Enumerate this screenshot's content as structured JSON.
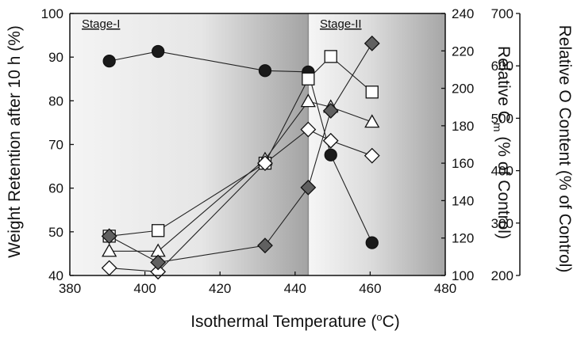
{
  "chart_data": {
    "type": "scatter",
    "x_axis": {
      "label_prefix": "Isothermal Temperature (",
      "label_sup": "o",
      "label_suffix": "C)",
      "range": [
        380,
        480
      ],
      "ticks": [
        "380",
        "400",
        "420",
        "440",
        "460",
        "480"
      ]
    },
    "y_left": {
      "label": "Weight Retention after 10 h (%)",
      "range": [
        40,
        100
      ],
      "ticks": [
        "40",
        "50",
        "60",
        "70",
        "80",
        "90",
        "100"
      ]
    },
    "y_middle": {
      "label_prefix": "Relative C",
      "label_sub": "m",
      "label_suffix": " (% of Control)",
      "range": [
        100,
        240
      ],
      "ticks": [
        "100",
        "120",
        "140",
        "160",
        "180",
        "200",
        "220",
        "240"
      ]
    },
    "y_right": {
      "label": "Relative O Content (% of Control)",
      "range": [
        200,
        700
      ],
      "ticks": [
        "200",
        "300",
        "400",
        "500",
        "600",
        "700"
      ]
    },
    "stages": [
      {
        "label": "Stage-I",
        "x_range": [
          380,
          443.5
        ]
      },
      {
        "label": "Stage-II",
        "x_range": [
          443.5,
          480
        ]
      }
    ],
    "series": [
      {
        "marker": "circle-filled",
        "axis": "left",
        "color": "#1a1a1a",
        "x": [
          390.5,
          403.5,
          432,
          443.5,
          449.5,
          460.5
        ],
        "y": [
          89.1,
          91.3,
          86.9,
          86.6,
          67.6,
          47.5
        ]
      },
      {
        "marker": "square-open",
        "axis": "middle",
        "color": "#ffffff",
        "x": [
          390.5,
          403.5,
          432,
          443.5,
          449.5,
          460.5
        ],
        "y": [
          121,
          124,
          160,
          205,
          217,
          198
        ]
      },
      {
        "marker": "triangle-open",
        "axis": "middle",
        "color": "#ffffff",
        "x": [
          390.5,
          403.5,
          432,
          443.5,
          449.5,
          460.5
        ],
        "y": [
          113,
          113,
          162,
          193,
          190,
          182
        ]
      },
      {
        "marker": "diamond-open",
        "axis": "middle",
        "color": "#ffffff",
        "x": [
          390.5,
          403.5,
          432,
          443.5,
          449.5,
          460.5
        ],
        "y": [
          104,
          102,
          160,
          178,
          172,
          164
        ]
      },
      {
        "marker": "diamond-filled",
        "axis": "middle",
        "color": "#606060",
        "x": [
          390.5,
          403.5,
          432,
          443.5,
          449.5,
          460.5
        ],
        "y": [
          121,
          107,
          116,
          147,
          188,
          224
        ]
      }
    ],
    "grid": false,
    "legend": "none"
  }
}
